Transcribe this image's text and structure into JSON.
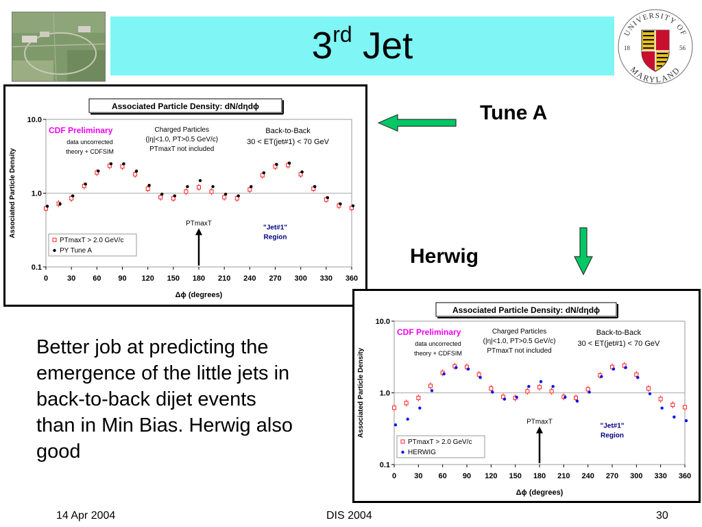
{
  "slide": {
    "title_main": "3",
    "title_sup": "rd",
    "title_rest": " Jet",
    "tune_a_label": "Tune A",
    "herwig_label": "Herwig",
    "body_text": "Better job at predicting the emergence of the little jets in back-to-back dijet events than in Min Bias.  Herwig also good",
    "footer_date": "14 Apr 2004",
    "footer_event": "DIS 2004",
    "footer_page": "30"
  },
  "logo": {
    "top_text": "UNIVERSITY OF",
    "bottom_text": "MARYLAND",
    "left_year": "18",
    "right_year": "56"
  },
  "colors": {
    "title_bar": "#7ff5f5",
    "arrow_fill": "#00c864",
    "data_marker": "#ff2020",
    "cdf_label": "#ee00ee",
    "region_label": "#000080",
    "herwig_marker": "#1010ee"
  },
  "chart_data": [
    {
      "type": "scatter",
      "title": "Associated Particle Density: dN/dηdϕ",
      "xlabel": "Δϕ  (degrees)",
      "ylabel": "Associated Particle Density",
      "xlim": [
        0,
        360
      ],
      "ylim": [
        0.1,
        10.0
      ],
      "yscale": "log",
      "x_ticks": [
        "0",
        "30",
        "60",
        "90",
        "120",
        "150",
        "180",
        "210",
        "240",
        "270",
        "300",
        "330",
        "360"
      ],
      "y_ticks": [
        "10.0",
        "1.0",
        "0.1"
      ],
      "grid": "horizontal",
      "legend_position": "bottom-left",
      "annotations": {
        "cdf": "CDF Preliminary",
        "cdf_note1": "data uncorrected",
        "cdf_note2": "theory + CDFSIM",
        "charged1": "Charged Particles",
        "charged2": "(|η|<1.0, PT>0.5 GeV/c)",
        "charged3": "PTmaxT not included",
        "btb1": "Back-to-Back",
        "btb2": "30 < ET(jet#1) < 70 GeV",
        "ptmax": "PTmaxT",
        "jet1": "\"Jet#1\"",
        "region": "Region"
      },
      "series": [
        {
          "name": "PTmaxT > 2.0 GeV/c",
          "marker": "open-square",
          "x": [
            0,
            15,
            30,
            45,
            60,
            75,
            90,
            105,
            120,
            135,
            150,
            165,
            180,
            195,
            210,
            225,
            240,
            255,
            270,
            285,
            300,
            315,
            330,
            345,
            360
          ],
          "y": [
            0.62,
            0.72,
            0.85,
            1.25,
            1.9,
            2.35,
            2.3,
            1.8,
            1.15,
            0.88,
            0.85,
            1.05,
            1.2,
            1.05,
            0.88,
            0.85,
            1.12,
            1.75,
            2.3,
            2.4,
            1.8,
            1.15,
            0.82,
            0.68,
            0.63
          ]
        },
        {
          "name": "PY Tune A",
          "marker": "filled-circle",
          "x": [
            0,
            15,
            30,
            45,
            60,
            75,
            90,
            105,
            120,
            135,
            150,
            165,
            180,
            195,
            210,
            225,
            240,
            255,
            270,
            285,
            300,
            315,
            330,
            345,
            360
          ],
          "y": [
            0.65,
            0.7,
            0.9,
            1.3,
            1.95,
            2.45,
            2.45,
            1.95,
            1.25,
            0.95,
            0.9,
            1.2,
            1.45,
            1.2,
            0.95,
            0.9,
            1.2,
            1.85,
            2.4,
            2.5,
            1.9,
            1.2,
            0.85,
            0.7,
            0.66
          ]
        }
      ]
    },
    {
      "type": "scatter",
      "title": "Associated Particle Density: dN/dηdϕ",
      "xlabel": "Δϕ  (degrees)",
      "ylabel": "Associated Particle Density",
      "xlim": [
        0,
        360
      ],
      "ylim": [
        0.1,
        10.0
      ],
      "yscale": "log",
      "x_ticks": [
        "0",
        "30",
        "60",
        "90",
        "120",
        "150",
        "180",
        "210",
        "240",
        "270",
        "300",
        "330",
        "360"
      ],
      "y_ticks": [
        "10.0",
        "1.0",
        "0.1"
      ],
      "grid": "horizontal",
      "legend_position": "bottom-left",
      "annotations": {
        "cdf": "CDF Preliminary",
        "cdf_note1": "data uncorrected",
        "cdf_note2": "theory + CDFSIM",
        "charged1": "Charged Particles",
        "charged2": "(|η|<1.0, PT>0.5 GeV/c)",
        "charged3": "PTmaxT not included",
        "btb1": "Back-to-Back",
        "btb2": "30 < ET(jet#1) < 70 GeV",
        "ptmax": "PTmaxT",
        "jet1": "\"Jet#1\"",
        "region": "Region"
      },
      "series": [
        {
          "name": "PTmaxT > 2.0 GeV/c",
          "marker": "open-square",
          "x": [
            0,
            15,
            30,
            45,
            60,
            75,
            90,
            105,
            120,
            135,
            150,
            165,
            180,
            195,
            210,
            225,
            240,
            255,
            270,
            285,
            300,
            315,
            330,
            345,
            360
          ],
          "y": [
            0.62,
            0.72,
            0.85,
            1.25,
            1.9,
            2.35,
            2.3,
            1.8,
            1.15,
            0.88,
            0.85,
            1.05,
            1.2,
            1.05,
            0.88,
            0.85,
            1.12,
            1.75,
            2.3,
            2.4,
            1.8,
            1.15,
            0.82,
            0.68,
            0.63
          ]
        },
        {
          "name": "HERWIG",
          "marker": "filled-circle",
          "x": [
            0,
            15,
            30,
            45,
            60,
            75,
            90,
            105,
            120,
            135,
            150,
            165,
            180,
            195,
            210,
            225,
            240,
            255,
            270,
            285,
            300,
            315,
            330,
            345,
            360
          ],
          "y": [
            0.35,
            0.42,
            0.6,
            1.05,
            1.8,
            2.2,
            2.1,
            1.6,
            1.0,
            0.8,
            0.85,
            1.2,
            1.4,
            1.2,
            0.85,
            0.75,
            1.0,
            1.65,
            2.1,
            2.2,
            1.6,
            0.95,
            0.6,
            0.45,
            0.4
          ]
        }
      ]
    }
  ]
}
